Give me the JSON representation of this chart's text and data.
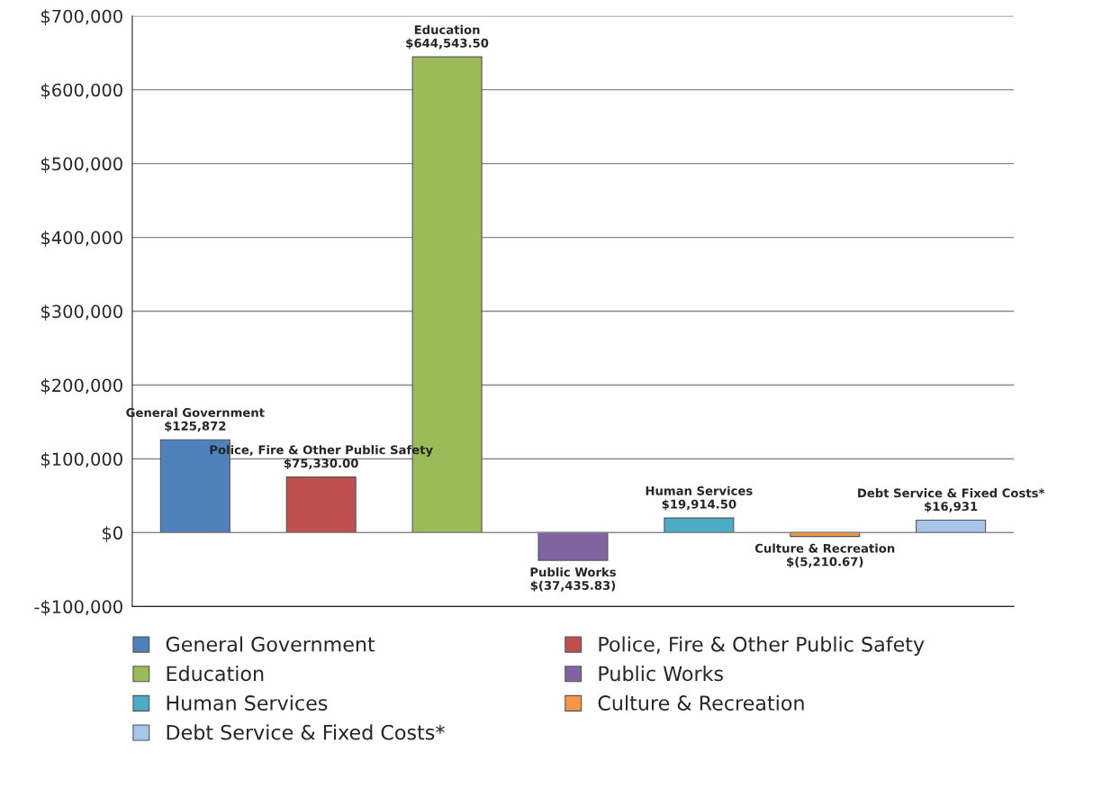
{
  "chart_data": {
    "type": "bar",
    "categories": [
      null
    ],
    "series": [
      {
        "name": "General Government",
        "color": "#4f81bd",
        "values": [
          125872
        ],
        "value_labels": [
          "$125,872"
        ]
      },
      {
        "name": "Police, Fire & Other Public Safety",
        "color": "#c0504d",
        "values": [
          75330.0
        ],
        "value_labels": [
          "$75,330.00"
        ]
      },
      {
        "name": "Education",
        "color": "#9bbb59",
        "values": [
          644543.5
        ],
        "value_labels": [
          "$644,543.50"
        ]
      },
      {
        "name": "Public Works",
        "color": "#8064a2",
        "values": [
          -37435.83
        ],
        "value_labels": [
          "$(37,435.83)"
        ]
      },
      {
        "name": "Human Services",
        "color": "#4bacc6",
        "values": [
          19914.5
        ],
        "value_labels": [
          "$19,914.50"
        ]
      },
      {
        "name": "Culture & Recreation",
        "color": "#f79646",
        "values": [
          -5210.67
        ],
        "value_labels": [
          "$(5,210.67)"
        ]
      },
      {
        "name": "Debt Service & Fixed Costs*",
        "color": "#a6c5e8",
        "values": [
          16931
        ],
        "value_labels": [
          "$16,931"
        ]
      }
    ],
    "ylim": [
      -100000,
      700000
    ],
    "yticks": [
      {
        "value": -100000,
        "label": "-$100,000"
      },
      {
        "value": 0,
        "label": "$0"
      },
      {
        "value": 100000,
        "label": "$100,000"
      },
      {
        "value": 200000,
        "label": "$200,000"
      },
      {
        "value": 300000,
        "label": "$300,000"
      },
      {
        "value": 400000,
        "label": "$400,000"
      },
      {
        "value": 500000,
        "label": "$500,000"
      },
      {
        "value": 600000,
        "label": "$600,000"
      },
      {
        "value": 700000,
        "label": "$700,000"
      }
    ],
    "grid": "y",
    "legend": "bottom",
    "tick_labels": "y"
  }
}
